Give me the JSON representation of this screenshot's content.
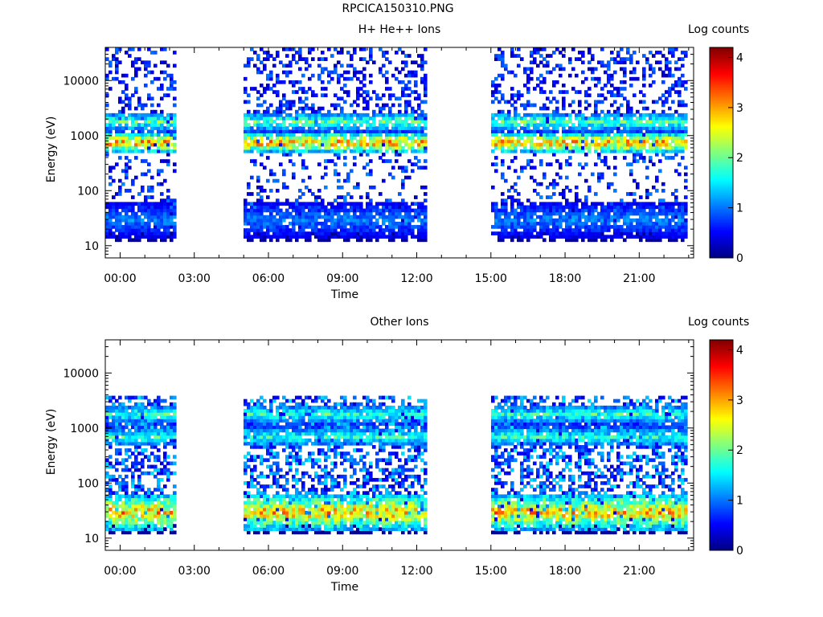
{
  "page_title": "RPCICA150310.PNG",
  "chart_data": [
    {
      "type": "heatmap",
      "title": "H+ He++ Ions",
      "xlabel": "Time",
      "ylabel": "Energy (eV)",
      "x_ticks": [
        "00:00",
        "03:00",
        "06:00",
        "09:00",
        "12:00",
        "15:00",
        "18:00",
        "21:00"
      ],
      "y_ticks": [
        "10",
        "100",
        "1000",
        "10000"
      ],
      "y_scale": "log",
      "ylim": [
        6,
        40000
      ],
      "xlim_hours": [
        -0.6,
        23.2
      ],
      "colorbar": {
        "title": "Log counts",
        "ticks": [
          "0",
          "1",
          "2",
          "3",
          "4"
        ],
        "range": [
          0,
          4.2
        ]
      },
      "data_gaps_hours": [
        [
          2.3,
          5.0
        ],
        [
          12.4,
          15.0
        ]
      ],
      "bands": [
        {
          "label": "main",
          "energy_eV": 750,
          "level": 3.4
        },
        {
          "label": "upper",
          "energy_eV": 1800,
          "level": 2.2
        },
        {
          "label": "low-energy",
          "energy_eV": 30,
          "level": 1.2
        }
      ]
    },
    {
      "type": "heatmap",
      "title": "Other Ions",
      "xlabel": "Time",
      "ylabel": "Energy (eV)",
      "x_ticks": [
        "00:00",
        "03:00",
        "06:00",
        "09:00",
        "12:00",
        "15:00",
        "18:00",
        "21:00"
      ],
      "y_ticks": [
        "10",
        "100",
        "1000",
        "10000"
      ],
      "y_scale": "log",
      "ylim": [
        6,
        40000
      ],
      "xlim_hours": [
        -0.6,
        23.2
      ],
      "colorbar": {
        "title": "Log counts",
        "ticks": [
          "0",
          "1",
          "2",
          "3",
          "4"
        ],
        "range": [
          0,
          4.2
        ]
      },
      "data_gaps_hours": [
        [
          2.3,
          5.0
        ],
        [
          12.4,
          15.0
        ]
      ],
      "bands": [
        {
          "label": "low-energy",
          "energy_eV": 30,
          "level": 3.3
        },
        {
          "label": "mid",
          "energy_eV": 700,
          "level": 2.0
        },
        {
          "label": "upper",
          "energy_eV": 1800,
          "level": 2.0
        }
      ]
    }
  ]
}
